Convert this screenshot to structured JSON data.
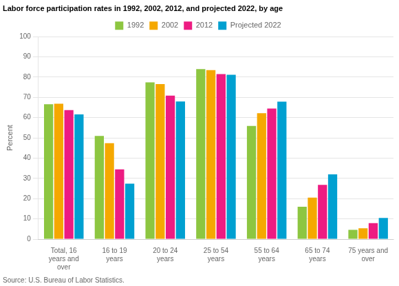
{
  "chart_data": {
    "type": "bar",
    "title": "Labor force participation rates in 1992, 2002, 2012, and projected 2022, by age",
    "ylabel": "Percent",
    "annotations": [
      "Source: U.S. Bureau of Labor Statistics."
    ],
    "categories": [
      "Total, 16\nyears and\nover",
      "16 to 19\nyears",
      "20 to 24\nyears",
      "25 to 54\nyears",
      "55 to 64\nyears",
      "65 to 74\nyears",
      "75 years and\nover"
    ],
    "series": [
      {
        "name": "1992",
        "color": "#8DC641",
        "values": [
          66.6,
          51.0,
          77.4,
          84.0,
          55.9,
          16.0,
          4.6
        ]
      },
      {
        "name": "2002",
        "color": "#F5A800",
        "values": [
          66.9,
          47.4,
          76.6,
          83.5,
          62.2,
          20.5,
          5.4
        ]
      },
      {
        "name": "2012",
        "color": "#ED1C82",
        "values": [
          63.7,
          34.5,
          70.9,
          81.5,
          64.5,
          26.8,
          7.9
        ]
      },
      {
        "name": "Projected 2022",
        "color": "#00A0D1",
        "values": [
          61.6,
          27.4,
          68.0,
          81.2,
          67.9,
          32.0,
          10.5
        ]
      }
    ],
    "ylim": [
      0,
      100
    ],
    "yticks": [
      0,
      10,
      20,
      30,
      40,
      50,
      60,
      70,
      80,
      90,
      100
    ],
    "grid": true,
    "legend": "top"
  }
}
